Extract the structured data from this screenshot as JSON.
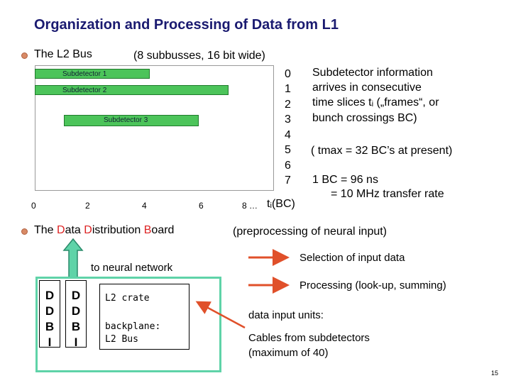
{
  "title": "Organization and Processing of Data from L1",
  "l2bus": {
    "label": "The L2 Bus",
    "note": "(8 subbusses, 16 bit wide)",
    "bars": [
      "Subdetector 1",
      "Subdetector 2",
      "Subdetector 3"
    ],
    "y_labels": [
      "0",
      "1",
      "2",
      "3",
      "4",
      "5",
      "6",
      "7"
    ],
    "x_labels": [
      "0",
      "2",
      "4",
      "6",
      "8 …"
    ],
    "x_axis_label": "tᵢ(BC)"
  },
  "info": {
    "line1": "Subdetector information",
    "line2": "arrives in consecutive",
    "line3": "time slices tᵢ („frames“, or",
    "line4": "bunch crossings BC)",
    "tmax": "( tmax = 32 BC’s at present)",
    "bc1": "1 BC = 96 ns",
    "bc2": "= 10 MHz transfer rate"
  },
  "ddb": {
    "prefix": "The ",
    "d1": "D",
    "w1": "ata ",
    "d2": "D",
    "w2": "istribution ",
    "d3": "B",
    "w3": "oard",
    "note": "(preprocessing of neural input)"
  },
  "diagram": {
    "to_nn": "to neural network",
    "slot_letters": [
      "D",
      "D",
      "B",
      "I"
    ],
    "crate_label": "L2 crate",
    "backplane_1": "backplane:",
    "backplane_2": "L2 Bus"
  },
  "legend": {
    "selection": "Selection of input data",
    "processing": "Processing (look-up, summing)",
    "inputs_title": "data input units:",
    "cables_1": "Cables from subdetectors",
    "cables_2": "(maximum of 40)"
  },
  "page_number": "15",
  "colors": {
    "title": "#1a1a70",
    "accent": "#dd2222",
    "bar": "#4cc45a",
    "board": "#5fd3a8",
    "arrow": "#e0502a"
  }
}
